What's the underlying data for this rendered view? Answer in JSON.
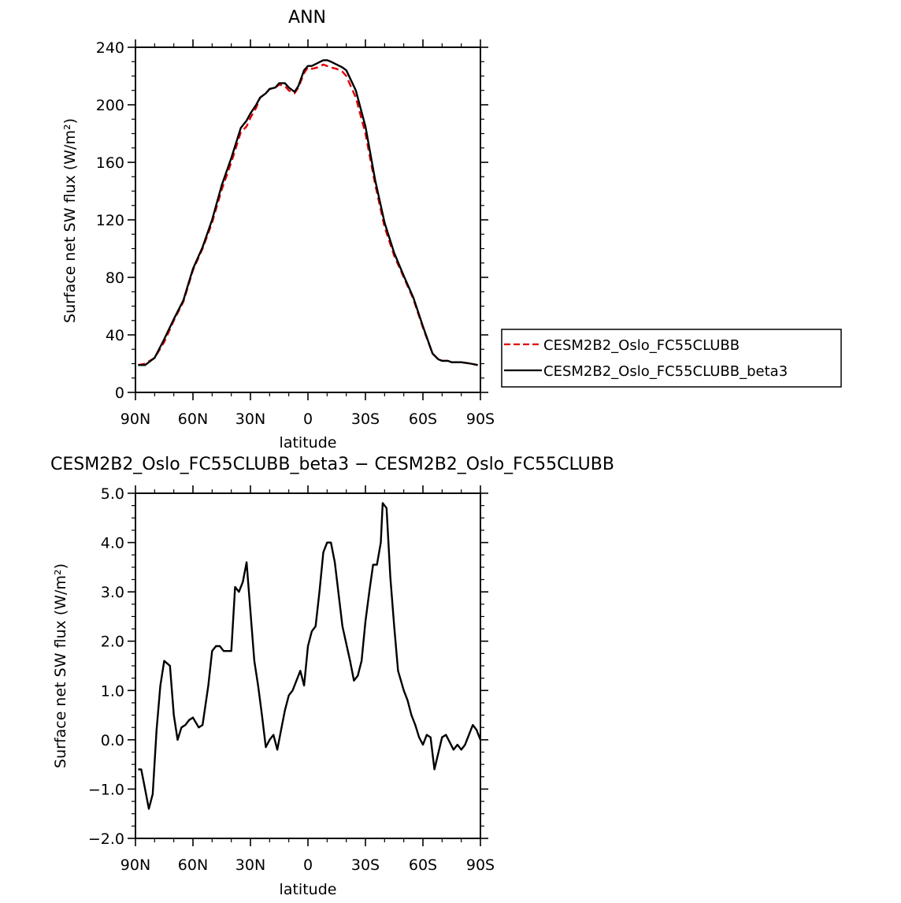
{
  "chart_data": [
    {
      "type": "line",
      "title": "ANN",
      "xlabel": "latitude",
      "ylabel": "Surface net SW flux (W/m²)",
      "x_tick_labels": [
        "90N",
        "60N",
        "30N",
        "0",
        "30S",
        "60S",
        "90S"
      ],
      "x_tick_values": [
        90,
        60,
        30,
        0,
        -30,
        -60,
        -90
      ],
      "xlim": [
        90,
        -90
      ],
      "y_tick_labels": [
        "0",
        "40",
        "80",
        "120",
        "160",
        "200",
        "240"
      ],
      "y_tick_values": [
        0,
        40,
        80,
        120,
        160,
        200,
        240
      ],
      "ylim": [
        0,
        240
      ],
      "legend": {
        "placement": "right",
        "entries": [
          {
            "name": "CESM2B2_Oslo_FC55CLUBB",
            "color": "#e00000",
            "dash": "dashed"
          },
          {
            "name": "CESM2B2_Oslo_FC55CLUBB_beta3",
            "color": "#000000",
            "dash": "solid"
          }
        ]
      },
      "series": [
        {
          "name": "CESM2B2_Oslo_FC55CLUBB",
          "color": "#e00000",
          "dash": "dashed",
          "x": [
            88.6,
            85,
            80,
            75,
            70,
            65,
            60,
            55,
            50,
            45,
            40,
            35,
            32,
            30,
            27,
            25,
            22,
            20,
            17,
            15,
            12,
            10,
            7,
            5,
            2,
            0,
            -2,
            -5,
            -8,
            -10,
            -12,
            -15,
            -18,
            -20,
            -25,
            -30,
            -35,
            -40,
            -45,
            -50,
            -55,
            -60,
            -65,
            -68,
            -70,
            -73,
            -75,
            -77,
            -80,
            -85,
            -88.6
          ],
          "y": [
            19,
            20,
            24,
            35,
            50,
            63,
            85,
            100,
            118,
            141,
            160,
            181,
            185,
            191,
            198,
            205,
            208,
            211,
            212,
            214,
            213,
            210,
            208,
            212,
            222,
            226,
            225,
            226,
            228,
            227,
            226,
            225,
            223,
            220,
            205,
            180,
            145,
            115,
            95,
            80,
            65,
            45,
            27,
            23,
            22,
            22,
            21,
            21,
            21,
            20,
            19
          ]
        },
        {
          "name": "CESM2B2_Oslo_FC55CLUBB_beta3",
          "color": "#000000",
          "dash": "solid",
          "x": [
            88.6,
            85,
            80,
            75,
            70,
            65,
            60,
            55,
            50,
            45,
            40,
            35,
            32,
            30,
            27,
            25,
            22,
            20,
            17,
            15,
            12,
            10,
            7,
            5,
            2,
            0,
            -2,
            -5,
            -8,
            -10,
            -12,
            -15,
            -18,
            -20,
            -25,
            -30,
            -35,
            -40,
            -45,
            -50,
            -55,
            -60,
            -65,
            -68,
            -70,
            -73,
            -75,
            -77,
            -80,
            -85,
            -88.6
          ],
          "y": [
            19,
            19,
            24,
            37,
            51,
            64,
            86,
            101,
            120,
            144,
            163,
            184,
            189,
            194,
            200,
            205,
            208,
            211,
            212,
            215,
            215,
            212,
            209,
            213,
            224,
            227,
            227,
            229,
            231,
            231,
            230,
            228,
            226,
            224,
            210,
            185,
            148,
            118,
            97,
            81,
            66,
            46,
            27,
            23,
            22,
            22,
            21,
            21,
            21,
            20,
            19
          ]
        }
      ]
    },
    {
      "type": "line",
      "title": "CESM2B2_Oslo_FC55CLUBB_beta3 − CESM2B2_Oslo_FC55CLUBB",
      "xlabel": "latitude",
      "ylabel": "Surface net SW flux (W/m²)",
      "x_tick_labels": [
        "90N",
        "60N",
        "30N",
        "0",
        "30S",
        "60S",
        "90S"
      ],
      "x_tick_values": [
        90,
        60,
        30,
        0,
        -30,
        -60,
        -90
      ],
      "xlim": [
        90,
        -90
      ],
      "y_tick_labels": [
        "−2.0",
        "−1.0",
        "0.0",
        "1.0",
        "2.0",
        "3.0",
        "4.0",
        "5.0"
      ],
      "y_tick_values": [
        -2,
        -1,
        0,
        1,
        2,
        3,
        4,
        5
      ],
      "ylim": [
        -2,
        5
      ],
      "series": [
        {
          "name": "CESM2B2_Oslo_FC55CLUBB_beta3 − CESM2B2_Oslo_FC55CLUBB",
          "color": "#000000",
          "dash": "solid",
          "x": [
            88.6,
            87,
            85,
            83,
            81,
            79,
            77,
            75,
            72,
            70,
            68,
            66,
            64,
            62,
            60,
            57,
            55,
            52,
            50,
            48,
            46,
            44,
            42,
            40,
            38,
            36,
            34,
            32,
            28,
            26,
            24,
            22,
            20,
            18,
            16,
            14,
            12,
            10,
            8,
            6,
            4,
            2,
            0,
            -2,
            -4,
            -6,
            -8,
            -10,
            -12,
            -14,
            -18,
            -22,
            -24,
            -26,
            -28,
            -30,
            -32,
            -34,
            -36,
            -38,
            -39,
            -41,
            -43,
            -45,
            -47,
            -50,
            -52,
            -54,
            -56,
            -58,
            -60,
            -62,
            -64,
            -66,
            -70,
            -72,
            -76,
            -78,
            -80,
            -82,
            -86,
            -88,
            -90
          ],
          "y": [
            -0.6,
            -0.6,
            -1.0,
            -1.4,
            -1.1,
            0.2,
            1.1,
            1.6,
            1.5,
            0.5,
            0.0,
            0.25,
            0.3,
            0.4,
            0.45,
            0.25,
            0.3,
            1.1,
            1.8,
            1.9,
            1.9,
            1.8,
            1.8,
            1.8,
            3.1,
            3.0,
            3.2,
            3.6,
            1.6,
            1.1,
            0.5,
            -0.15,
            0.0,
            0.1,
            -0.2,
            0.2,
            0.6,
            0.9,
            1.0,
            1.2,
            1.4,
            1.1,
            1.9,
            2.2,
            2.3,
            3.0,
            3.8,
            4.0,
            4.0,
            3.6,
            2.3,
            1.6,
            1.2,
            1.3,
            1.6,
            2.4,
            3.0,
            3.55,
            3.55,
            4.0,
            4.8,
            4.7,
            3.3,
            2.3,
            1.4,
            1.0,
            0.8,
            0.5,
            0.3,
            0.05,
            -0.1,
            0.1,
            0.05,
            -0.6,
            0.05,
            0.1,
            -0.2,
            -0.1,
            -0.2,
            -0.1,
            0.3,
            0.2,
            0.0
          ]
        }
      ]
    }
  ]
}
